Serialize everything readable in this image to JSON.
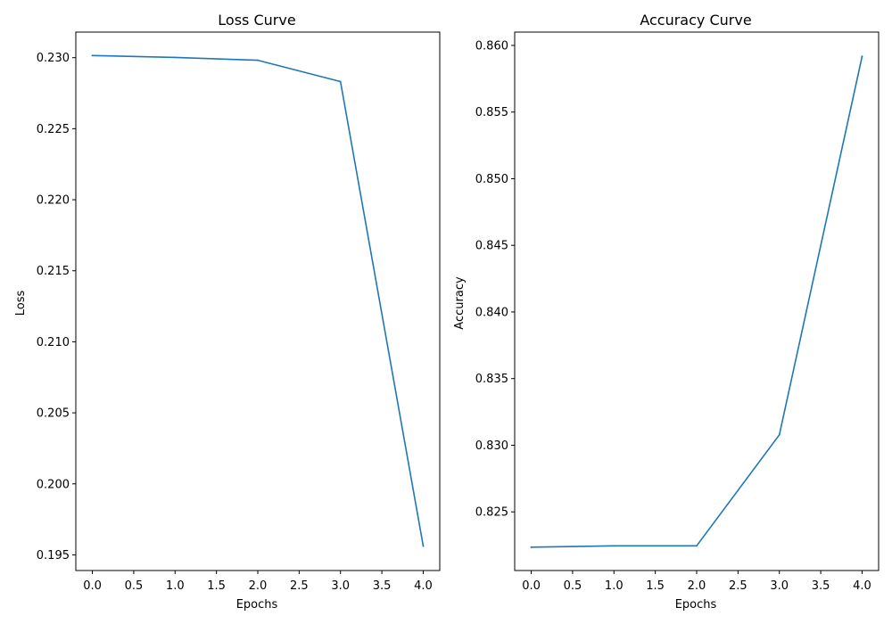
{
  "chart_data": [
    {
      "type": "line",
      "title": "Loss Curve",
      "xlabel": "Epochs",
      "ylabel": "Loss",
      "x": [
        0,
        1,
        2,
        3,
        4
      ],
      "series": [
        {
          "values": [
            0.23015,
            0.23002,
            0.22982,
            0.22832,
            0.19562
          ],
          "color": "#1f77b4"
        }
      ],
      "xlim": [
        -0.2,
        4.2
      ],
      "ylim": [
        0.1939,
        0.2318
      ],
      "xticks": [
        0.0,
        0.5,
        1.0,
        1.5,
        2.0,
        2.5,
        3.0,
        3.5,
        4.0
      ],
      "xtick_labels": [
        "0.0",
        "0.5",
        "1.0",
        "1.5",
        "2.0",
        "2.5",
        "3.0",
        "3.5",
        "4.0"
      ],
      "yticks": [
        0.195,
        0.2,
        0.205,
        0.21,
        0.215,
        0.22,
        0.225,
        0.23
      ],
      "ytick_labels": [
        "0.195",
        "0.200",
        "0.205",
        "0.210",
        "0.215",
        "0.220",
        "0.225",
        "0.230"
      ],
      "grid": false
    },
    {
      "type": "line",
      "title": "Accuracy Curve",
      "xlabel": "Epochs",
      "ylabel": "Accuracy",
      "x": [
        0,
        1,
        2,
        3,
        4
      ],
      "series": [
        {
          "values": [
            0.82235,
            0.82245,
            0.82245,
            0.83078,
            0.85918
          ],
          "color": "#1f77b4"
        }
      ],
      "xlim": [
        -0.2,
        4.2
      ],
      "ylim": [
        0.8206,
        0.861
      ],
      "xticks": [
        0.0,
        0.5,
        1.0,
        1.5,
        2.0,
        2.5,
        3.0,
        3.5,
        4.0
      ],
      "xtick_labels": [
        "0.0",
        "0.5",
        "1.0",
        "1.5",
        "2.0",
        "2.5",
        "3.0",
        "3.5",
        "4.0"
      ],
      "yticks": [
        0.825,
        0.83,
        0.835,
        0.84,
        0.845,
        0.85,
        0.855,
        0.86
      ],
      "ytick_labels": [
        "0.825",
        "0.830",
        "0.835",
        "0.840",
        "0.845",
        "0.850",
        "0.855",
        "0.860"
      ],
      "grid": false
    }
  ]
}
